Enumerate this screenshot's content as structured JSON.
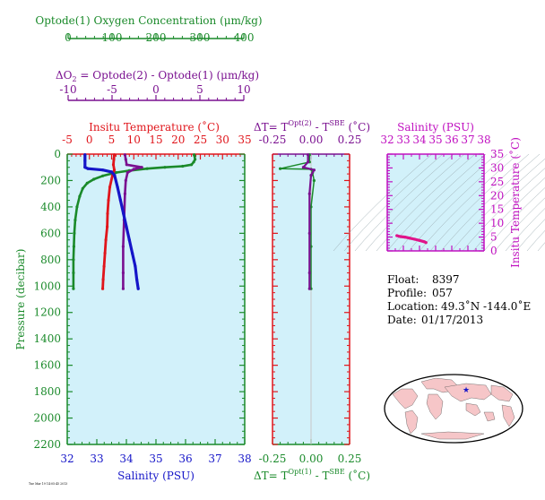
{
  "colors": {
    "oxygen": "#1a8a2a",
    "delta_o2": "#7a1090",
    "temperature": "#e0151b",
    "salinity": "#1515c8",
    "ts_curve": "#e0158a",
    "ts_axis": "#c010c0",
    "panel_bg": "#d2f1fa"
  },
  "axes": {
    "oxygen_title": "Optode(1) Oxygen Concentration (μm/kg)",
    "oxygen_ticks": [
      "0",
      "100",
      "200",
      "300",
      "400"
    ],
    "delta_o2_title_a": "ΔO",
    "delta_o2_title_sub": "2",
    "delta_o2_title_b": " = Optode(2) - Optode(1)     (μm/kg)",
    "delta_o2_ticks": [
      "-10",
      "-5",
      "0",
      "5",
      "10"
    ],
    "temperature_title": "Insitu Temperature (˚C)",
    "temperature_ticks": [
      "-5",
      "0",
      "5",
      "10",
      "15",
      "20",
      "25",
      "30",
      "35"
    ],
    "pressure_title": "Pressure (decibar)",
    "pressure_ticks": [
      "0",
      "200",
      "400",
      "600",
      "800",
      "1000",
      "1200",
      "1400",
      "1600",
      "1800",
      "2000",
      "2200"
    ],
    "salinity_title": "Salinity (PSU)",
    "salinity_ticks": [
      "32",
      "33",
      "34",
      "35",
      "36",
      "37",
      "38"
    ],
    "dt_top_a": "ΔT= T",
    "dt_top_sup": "Opt(2)",
    "dt_top_b": " - T",
    "dt_top_sup2": "SBE",
    "dt_top_c": " (˚C)",
    "dt_bottom_a": "ΔT= T",
    "dt_bottom_sup": "Opt(1)",
    "dt_bottom_b": " - T",
    "dt_bottom_sup2": "SBE",
    "dt_bottom_c": " (˚C)",
    "dt_ticks": [
      "-0.25",
      "0.00",
      "0.25"
    ],
    "ts_sal_title": "Salinity (PSU)",
    "ts_sal_ticks": [
      "32",
      "33",
      "34",
      "35",
      "36",
      "37",
      "38"
    ],
    "ts_temp_title": "Insitu Temperature (˚C)",
    "ts_temp_ticks": [
      "0",
      "5",
      "10",
      "15",
      "20",
      "25",
      "30",
      "35"
    ]
  },
  "info": {
    "float_label": "Float:",
    "float_value": "8397",
    "profile_label": "Profile:",
    "profile_value": "057",
    "location_label": "Location:",
    "location_value": "49.3˚N  -144.0˚E",
    "date_label": "Date:",
    "date_value": "01/17/2013"
  },
  "footnote": "Tue Mar 19 14:05:45 2013",
  "chart_data": [
    {
      "type": "line",
      "name": "profile",
      "y_axis": "pressure",
      "ylim": [
        2200,
        0
      ],
      "series": [
        {
          "name": "Optode(1) Oxygen Concentration",
          "xlim": [
            0,
            400
          ],
          "points": [
            [
              286,
              5
            ],
            [
              287,
              15
            ],
            [
              288,
              40
            ],
            [
              285,
              60
            ],
            [
              280,
              80
            ],
            [
              260,
              92
            ],
            [
              220,
              100
            ],
            [
              180,
              110
            ],
            [
              140,
              125
            ],
            [
              110,
              140
            ],
            [
              80,
              165
            ],
            [
              60,
              190
            ],
            [
              45,
              220
            ],
            [
              35,
              260
            ],
            [
              28,
              320
            ],
            [
              22,
              400
            ],
            [
              18,
              500
            ],
            [
              16,
              600
            ],
            [
              15,
              700
            ],
            [
              14,
              800
            ],
            [
              14,
              900
            ],
            [
              14,
              1020
            ]
          ]
        },
        {
          "name": "ΔO2",
          "xlim": [
            -10,
            10
          ],
          "points": [
            [
              -3.5,
              5
            ],
            [
              -3.4,
              40
            ],
            [
              -3.3,
              80
            ],
            [
              -1.6,
              100
            ],
            [
              -2.5,
              115
            ],
            [
              -3.2,
              140
            ],
            [
              -3.4,
              200
            ],
            [
              -3.5,
              300
            ],
            [
              -3.6,
              500
            ],
            [
              -3.7,
              700
            ],
            [
              -3.7,
              900
            ],
            [
              -3.7,
              1020
            ]
          ]
        },
        {
          "name": "Insitu Temperature",
          "xlim": [
            -5,
            35
          ],
          "points": [
            [
              5.6,
              5
            ],
            [
              5.5,
              40
            ],
            [
              5.4,
              80
            ],
            [
              5.6,
              120
            ],
            [
              5.2,
              160
            ],
            [
              4.6,
              250
            ],
            [
              4.3,
              350
            ],
            [
              4.1,
              450
            ],
            [
              4.0,
              550
            ],
            [
              3.7,
              650
            ],
            [
              3.5,
              750
            ],
            [
              3.3,
              850
            ],
            [
              3.1,
              950
            ],
            [
              3.0,
              1020
            ]
          ]
        },
        {
          "name": "Salinity",
          "xlim": [
            32,
            38
          ],
          "points": [
            [
              32.6,
              5
            ],
            [
              32.6,
              50
            ],
            [
              32.6,
              100
            ],
            [
              32.7,
              110
            ],
            [
              33.2,
              120
            ],
            [
              33.5,
              135
            ],
            [
              33.6,
              160
            ],
            [
              33.7,
              250
            ],
            [
              33.8,
              350
            ],
            [
              33.9,
              450
            ],
            [
              34.0,
              550
            ],
            [
              34.1,
              650
            ],
            [
              34.2,
              750
            ],
            [
              34.3,
              850
            ],
            [
              34.35,
              950
            ],
            [
              34.4,
              1020
            ]
          ]
        }
      ]
    },
    {
      "type": "line",
      "name": "delta_t",
      "y_axis": "pressure",
      "ylim": [
        2200,
        0
      ],
      "xlim": [
        -0.25,
        0.25
      ],
      "series": [
        {
          "name": "ΔT Opt(1) - SBE",
          "points": [
            [
              -0.01,
              5
            ],
            [
              -0.01,
              60
            ],
            [
              -0.2,
              110
            ],
            [
              0.0,
              115
            ],
            [
              0.01,
              140
            ],
            [
              0.02,
              200
            ],
            [
              0.0,
              400
            ],
            [
              0.0,
              700
            ],
            [
              0.0,
              1020
            ]
          ]
        },
        {
          "name": "ΔT Opt(2) - SBE",
          "points": [
            [
              -0.02,
              5
            ],
            [
              -0.02,
              60
            ],
            [
              -0.05,
              100
            ],
            [
              0.02,
              120
            ],
            [
              0.0,
              160
            ],
            [
              -0.01,
              300
            ],
            [
              -0.01,
              600
            ],
            [
              -0.01,
              900
            ],
            [
              -0.01,
              1020
            ]
          ]
        }
      ]
    },
    {
      "type": "line",
      "name": "t_s_diagram",
      "xlabel": "Salinity (PSU)",
      "ylabel": "Insitu Temperature (˚C)",
      "xlim": [
        32,
        38
      ],
      "ylim": [
        0,
        35
      ],
      "series": [
        {
          "name": "T-S",
          "points": [
            [
              32.6,
              5.5
            ],
            [
              32.8,
              5.2
            ],
            [
              33.1,
              5.0
            ],
            [
              33.4,
              4.6
            ],
            [
              33.7,
              4.2
            ],
            [
              34.0,
              3.8
            ],
            [
              34.3,
              3.3
            ],
            [
              34.4,
              3.0
            ]
          ]
        }
      ]
    }
  ]
}
